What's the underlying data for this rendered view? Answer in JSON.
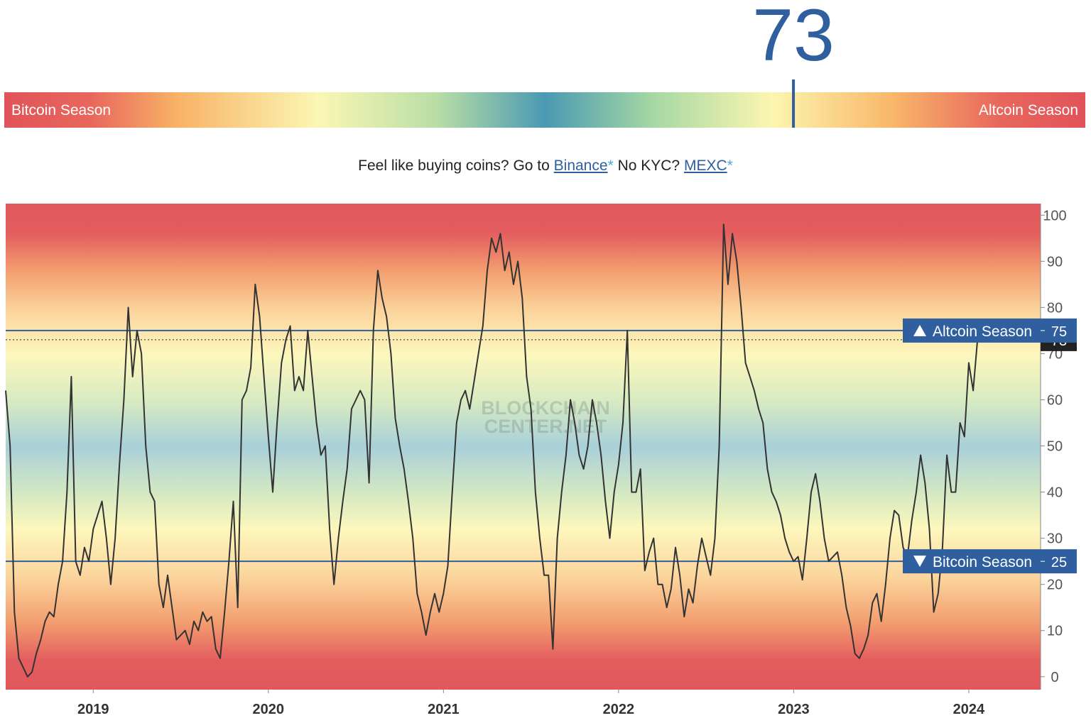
{
  "gauge": {
    "value": 73,
    "range": [
      0,
      100
    ],
    "left_label": "Bitcoin Season",
    "right_label": "Altcoin Season"
  },
  "promo": {
    "parts": [
      "Feel like buying coins? Go to",
      "Binance",
      "*",
      "No KYC?",
      "MEXC",
      "*"
    ]
  },
  "chart_data": {
    "type": "line",
    "watermark": [
      "BLOCKCHAIN",
      "CENTER.NET"
    ],
    "x": [
      2018.5,
      2018.525,
      2018.55,
      2018.575,
      2018.6,
      2018.625,
      2018.65,
      2018.675,
      2018.7,
      2018.725,
      2018.75,
      2018.775,
      2018.8,
      2018.825,
      2018.85,
      2018.875,
      2018.9,
      2018.925,
      2018.95,
      2018.975,
      2019,
      2019.025,
      2019.05,
      2019.075,
      2019.1,
      2019.125,
      2019.15,
      2019.175,
      2019.2,
      2019.225,
      2019.25,
      2019.275,
      2019.3,
      2019.325,
      2019.35,
      2019.375,
      2019.4,
      2019.425,
      2019.45,
      2019.475,
      2019.5,
      2019.525,
      2019.55,
      2019.575,
      2019.6,
      2019.625,
      2019.65,
      2019.675,
      2019.7,
      2019.725,
      2019.75,
      2019.775,
      2019.8,
      2019.825,
      2019.85,
      2019.875,
      2019.9,
      2019.925,
      2019.95,
      2019.975,
      2020,
      2020.025,
      2020.05,
      2020.075,
      2020.1,
      2020.125,
      2020.15,
      2020.175,
      2020.2,
      2020.225,
      2020.25,
      2020.275,
      2020.3,
      2020.325,
      2020.35,
      2020.375,
      2020.4,
      2020.425,
      2020.45,
      2020.475,
      2020.5,
      2020.525,
      2020.55,
      2020.575,
      2020.6,
      2020.625,
      2020.65,
      2020.675,
      2020.7,
      2020.725,
      2020.75,
      2020.775,
      2020.8,
      2020.825,
      2020.85,
      2020.875,
      2020.9,
      2020.925,
      2020.95,
      2020.975,
      2021,
      2021.025,
      2021.05,
      2021.075,
      2021.1,
      2021.125,
      2021.15,
      2021.175,
      2021.2,
      2021.225,
      2021.25,
      2021.275,
      2021.3,
      2021.325,
      2021.35,
      2021.375,
      2021.4,
      2021.425,
      2021.45,
      2021.475,
      2021.5,
      2021.525,
      2021.55,
      2021.575,
      2021.6,
      2021.625,
      2021.65,
      2021.675,
      2021.7,
      2021.725,
      2021.75,
      2021.775,
      2021.8,
      2021.825,
      2021.85,
      2021.875,
      2021.9,
      2021.925,
      2021.95,
      2021.975,
      2022,
      2022.025,
      2022.05,
      2022.075,
      2022.1,
      2022.125,
      2022.15,
      2022.175,
      2022.2,
      2022.225,
      2022.25,
      2022.275,
      2022.3,
      2022.325,
      2022.35,
      2022.375,
      2022.4,
      2022.425,
      2022.45,
      2022.475,
      2022.5,
      2022.525,
      2022.55,
      2022.575,
      2022.6,
      2022.625,
      2022.65,
      2022.675,
      2022.7,
      2022.725,
      2022.75,
      2022.775,
      2022.8,
      2022.825,
      2022.85,
      2022.875,
      2022.9,
      2022.925,
      2022.95,
      2022.975,
      2023,
      2023.025,
      2023.05,
      2023.075,
      2023.1,
      2023.125,
      2023.15,
      2023.175,
      2023.2,
      2023.225,
      2023.25,
      2023.275,
      2023.3,
      2023.325,
      2023.35,
      2023.375,
      2023.4,
      2023.425,
      2023.45,
      2023.475,
      2023.5,
      2023.525,
      2023.55,
      2023.575,
      2023.6,
      2023.625,
      2023.65,
      2023.675,
      2023.7,
      2023.725,
      2023.75,
      2023.775,
      2023.8,
      2023.825,
      2023.85,
      2023.875,
      2023.9,
      2023.925,
      2023.95,
      2023.975,
      2024,
      2024.025,
      2024.05
    ],
    "series": [
      {
        "color": "#333333",
        "values": [
          62,
          50,
          14,
          4,
          2,
          0,
          1,
          5,
          8,
          12,
          14,
          13,
          20,
          25,
          40,
          65,
          25,
          22,
          28,
          25,
          32,
          35,
          38,
          30,
          20,
          30,
          46,
          60,
          80,
          65,
          75,
          70,
          50,
          40,
          38,
          20,
          15,
          22,
          15,
          8,
          9,
          10,
          7,
          12,
          10,
          14,
          12,
          13,
          6,
          4,
          14,
          25,
          38,
          15,
          60,
          62,
          67,
          85,
          78,
          65,
          52,
          40,
          55,
          68,
          73,
          76,
          62,
          65,
          62,
          75,
          65,
          55,
          48,
          50,
          32,
          20,
          30,
          38,
          45,
          58,
          60,
          62,
          60,
          42,
          75,
          88,
          82,
          78,
          70,
          56,
          50,
          45,
          38,
          30,
          18,
          14,
          9,
          14,
          18,
          14,
          18,
          24,
          40,
          55,
          60,
          62,
          58,
          64,
          70,
          76,
          88,
          95,
          92,
          96,
          88,
          92,
          85,
          90,
          82,
          65,
          58,
          40,
          30,
          22,
          22,
          6,
          30,
          40,
          48,
          60,
          55,
          48,
          45,
          50,
          60,
          55,
          48,
          38,
          30,
          40,
          46,
          55,
          75,
          40,
          40,
          45,
          23,
          27,
          30,
          20,
          20,
          15,
          19,
          28,
          22,
          13,
          19,
          16,
          24,
          30,
          26,
          22,
          30,
          50,
          98,
          85,
          96,
          90,
          80,
          68,
          65,
          62,
          58,
          55,
          45,
          40,
          38,
          35,
          30,
          27,
          25,
          26,
          21,
          30,
          40,
          44,
          38,
          30,
          25,
          26,
          27,
          22,
          15,
          11,
          5,
          4,
          6,
          9,
          16,
          18,
          12,
          20,
          30,
          36,
          35,
          28,
          26,
          34,
          40,
          48,
          42,
          32,
          14,
          18,
          28,
          48,
          40,
          40,
          55,
          52,
          68,
          62,
          73
        ]
      }
    ],
    "reference_lines": [
      {
        "value": 75,
        "label": "Altcoin Season",
        "direction": "up",
        "color": "#2f5f9f"
      },
      {
        "value": 25,
        "label": "Bitcoin Season",
        "direction": "down",
        "color": "#2f5f9f"
      }
    ],
    "xlim": [
      2018.5,
      2024.41
    ],
    "xticks": [
      2019,
      2020,
      2021,
      2022,
      2023,
      2024
    ],
    "ylim": [
      -2.8,
      102.5
    ],
    "yticks": [
      0,
      10,
      20,
      30,
      40,
      50,
      60,
      70,
      80,
      90,
      100
    ]
  }
}
